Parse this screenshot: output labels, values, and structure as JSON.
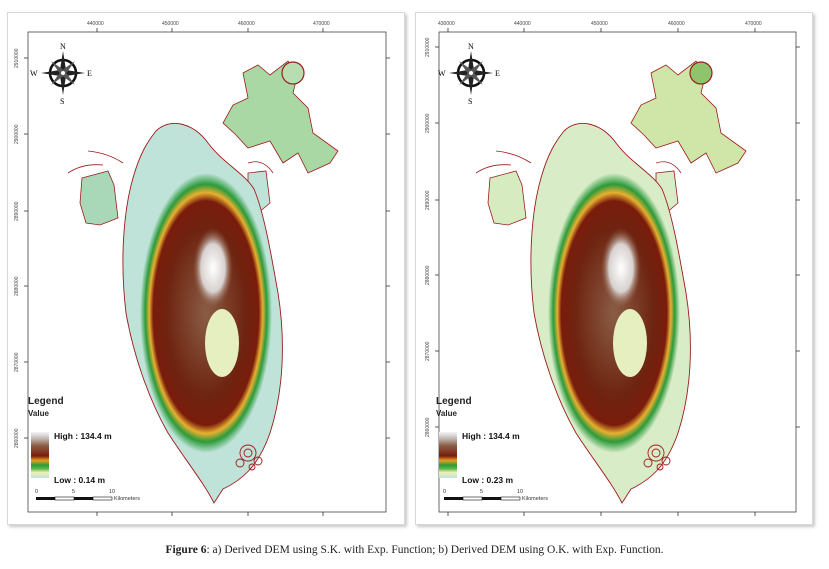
{
  "panels": [
    {
      "id": "a",
      "easting_labels": [
        "440000",
        "450000",
        "460000",
        "470000"
      ],
      "northing_labels": [
        "2910000",
        "2900000",
        "2890000",
        "2880000",
        "2870000",
        "2860000"
      ],
      "legend": {
        "title": "Legend",
        "subtitle": "Value",
        "high": "High : 134.4 m",
        "low": "Low : 0.14 m"
      },
      "scale": {
        "labels": [
          "0",
          "5",
          "10"
        ],
        "unit": "Kilometers"
      },
      "compass": {
        "n": "N",
        "s": "S",
        "e": "E",
        "w": "W"
      }
    },
    {
      "id": "b",
      "easting_labels": [
        "430000",
        "440000",
        "450000",
        "460000",
        "470000"
      ],
      "northing_labels": [
        "2910000",
        "2900000",
        "2890000",
        "2880000",
        "2870000",
        "2860000"
      ],
      "legend": {
        "title": "Legend",
        "subtitle": "Value",
        "high": "High : 134.4 m",
        "low": "Low : 0.23 m"
      },
      "scale": {
        "labels": [
          "0",
          "5",
          "10"
        ],
        "unit": "Kilometers"
      },
      "compass": {
        "n": "N",
        "s": "S",
        "e": "E",
        "w": "W"
      }
    }
  ],
  "colors": {
    "outline": "#9b1c1c",
    "lowland": "#bfe3d9",
    "green": "#2b9a3a",
    "yellow": "#e8b030",
    "red": "#7a1c0c",
    "brown": "#8a5d45",
    "peak": "#f4f4f4"
  },
  "caption": {
    "label": "Figure 6",
    "text": ": a) Derived DEM using S.K. with Exp. Function; b) Derived DEM using O.K. with Exp. Function."
  }
}
